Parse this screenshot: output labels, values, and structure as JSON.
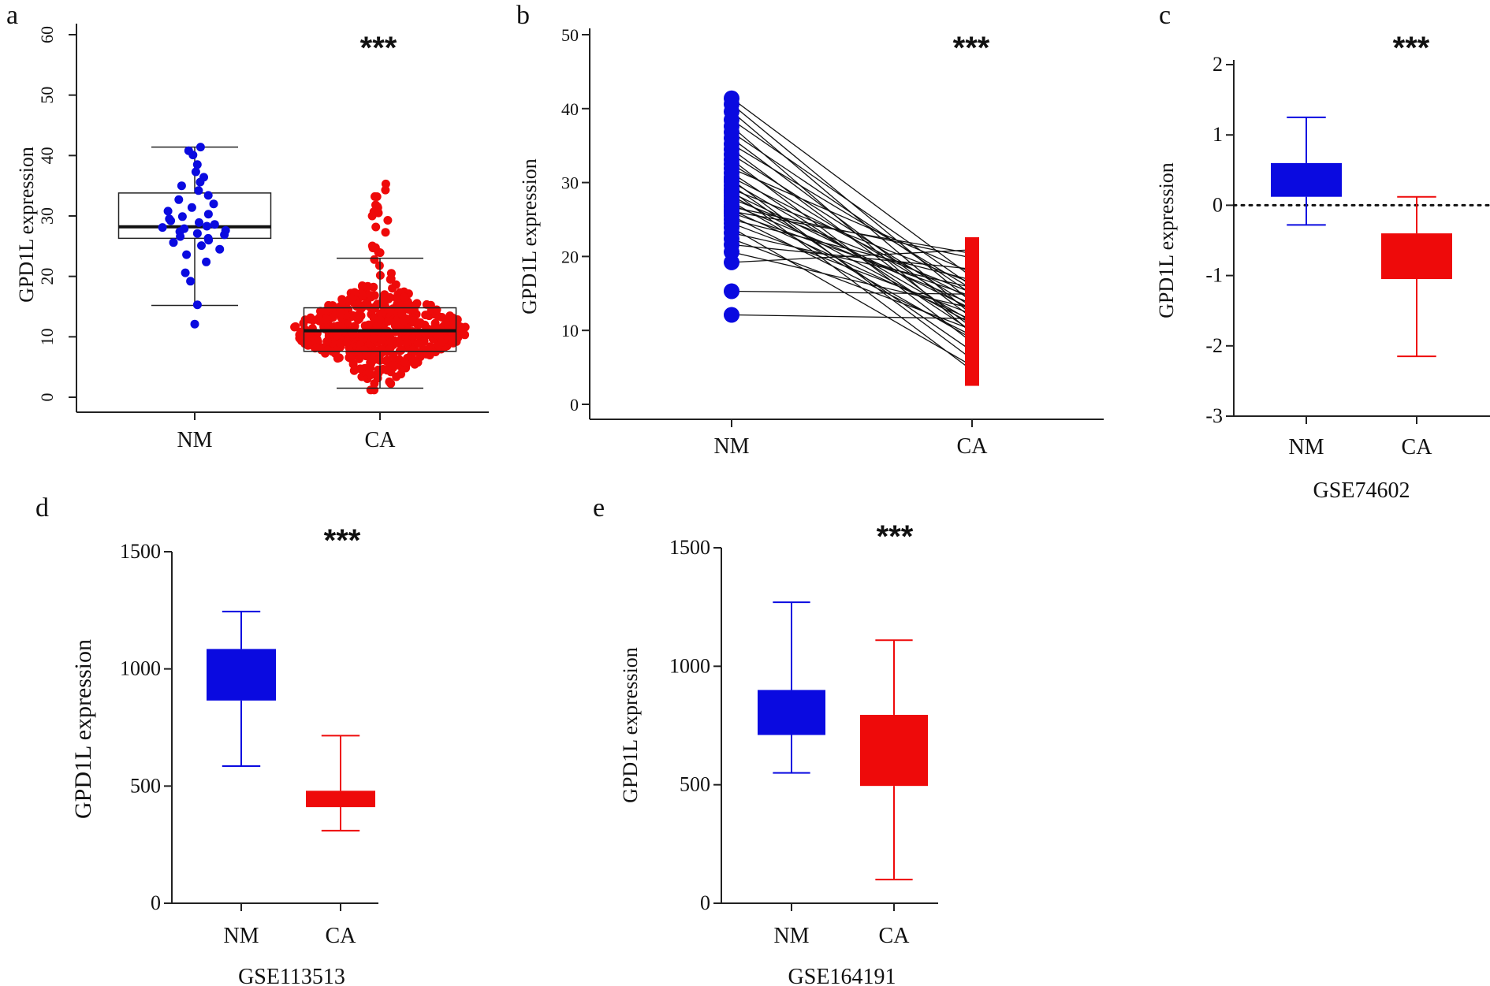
{
  "chart_data": [
    {
      "panel": "a",
      "type": "box+beeswarm",
      "ylabel": "GPD1L expression",
      "ylim": [
        0,
        60
      ],
      "yticks": [
        0,
        10,
        20,
        30,
        40,
        50,
        60
      ],
      "categories": [
        "NM",
        "CA"
      ],
      "significance": "***",
      "boxes": [
        {
          "name": "NM",
          "min": 15.2,
          "q1": 26.3,
          "median": 28.2,
          "q3": 33.8,
          "max": 41.4,
          "color": "#0a0ae0",
          "points": [
            12.1,
            15.3,
            19.2,
            20.6,
            22.4,
            23.6,
            24.5,
            25.1,
            25.6,
            26.0,
            26.3,
            26.6,
            26.9,
            27.1,
            27.4,
            27.6,
            27.9,
            28.1,
            28.3,
            28.6,
            28.9,
            29.2,
            29.5,
            29.9,
            30.3,
            30.8,
            31.4,
            32.0,
            32.7,
            33.4,
            34.2,
            35.0,
            35.6,
            36.4,
            37.3,
            38.5,
            40.1,
            40.8,
            41.4
          ]
        },
        {
          "name": "CA",
          "min": 1.5,
          "q1": 7.6,
          "median": 11.0,
          "q3": 14.8,
          "max": 23.0,
          "color": "#ee0a0a",
          "n_points": 560
        }
      ]
    },
    {
      "panel": "b",
      "type": "paired-line",
      "ylabel": "GPD1L expression",
      "ylim": [
        0,
        50
      ],
      "yticks": [
        0,
        10,
        20,
        30,
        40,
        50
      ],
      "categories": [
        "NM",
        "CA"
      ],
      "significance": "***",
      "nm_color": "#0a0ae0",
      "ca_color": "#ee0a0a",
      "pairs": [
        [
          41.4,
          17.2
        ],
        [
          40.6,
          13.8
        ],
        [
          39.6,
          12.1
        ],
        [
          38.5,
          16.0
        ],
        [
          37.6,
          9.6
        ],
        [
          36.8,
          14.9
        ],
        [
          36.0,
          11.7
        ],
        [
          35.2,
          15.6
        ],
        [
          34.5,
          10.4
        ],
        [
          33.8,
          13.2
        ],
        [
          33.1,
          8.4
        ],
        [
          32.5,
          12.6
        ],
        [
          31.9,
          17.8
        ],
        [
          31.3,
          9.9
        ],
        [
          30.7,
          14.2
        ],
        [
          30.1,
          11.2
        ],
        [
          29.6,
          7.2
        ],
        [
          29.1,
          16.4
        ],
        [
          28.6,
          12.9
        ],
        [
          28.2,
          10.9
        ],
        [
          27.8,
          15.1
        ],
        [
          27.4,
          8.9
        ],
        [
          27.0,
          13.6
        ],
        [
          26.7,
          19.8
        ],
        [
          26.3,
          11.4
        ],
        [
          25.9,
          14.6
        ],
        [
          25.5,
          9.3
        ],
        [
          25.0,
          16.8
        ],
        [
          24.5,
          12.2
        ],
        [
          23.9,
          5.2
        ],
        [
          23.2,
          15.8
        ],
        [
          22.4,
          10.1
        ],
        [
          21.6,
          18.3
        ],
        [
          20.6,
          13.0
        ],
        [
          19.2,
          20.9
        ],
        [
          15.3,
          14.9
        ],
        [
          12.1,
          11.6
        ],
        [
          30.4,
          6.1
        ],
        [
          28.9,
          4.6
        ],
        [
          26.1,
          20.4
        ]
      ]
    },
    {
      "panel": "c",
      "type": "box",
      "ylabel": "GPD1L expression",
      "ylim": [
        -3,
        2
      ],
      "yticks": [
        -3,
        -2,
        -1,
        0,
        1,
        2
      ],
      "categories": [
        "NM",
        "CA"
      ],
      "dataset": "GSE74602",
      "significance": "***",
      "reference_line": 0,
      "boxes": [
        {
          "name": "NM",
          "min": -0.28,
          "q1": 0.12,
          "q3": 0.6,
          "max": 1.25,
          "color": "#0a0ae0"
        },
        {
          "name": "CA",
          "min": -2.15,
          "q1": -1.05,
          "q3": -0.4,
          "max": 0.12,
          "color": "#ee0a0a"
        }
      ]
    },
    {
      "panel": "d",
      "type": "box",
      "ylabel": "GPD1L expression",
      "ylim": [
        0,
        1500
      ],
      "yticks": [
        0,
        500,
        1000,
        1500
      ],
      "categories": [
        "NM",
        "CA"
      ],
      "dataset": "GSE113513",
      "significance": "***",
      "boxes": [
        {
          "name": "NM",
          "min": 585,
          "q1": 865,
          "q3": 1085,
          "max": 1245,
          "color": "#0a0ae0"
        },
        {
          "name": "CA",
          "min": 310,
          "q1": 410,
          "q3": 480,
          "max": 715,
          "color": "#ee0a0a"
        }
      ]
    },
    {
      "panel": "e",
      "type": "box",
      "ylabel": "GPD1L expression",
      "ylim": [
        0,
        1500
      ],
      "yticks": [
        0,
        500,
        1000,
        1500
      ],
      "categories": [
        "NM",
        "CA"
      ],
      "dataset": "GSE164191",
      "significance": "***",
      "boxes": [
        {
          "name": "NM",
          "min": 550,
          "q1": 710,
          "q3": 900,
          "max": 1270,
          "color": "#0a0ae0"
        },
        {
          "name": "CA",
          "min": 100,
          "q1": 495,
          "q3": 795,
          "max": 1110,
          "color": "#ee0a0a"
        }
      ]
    }
  ]
}
